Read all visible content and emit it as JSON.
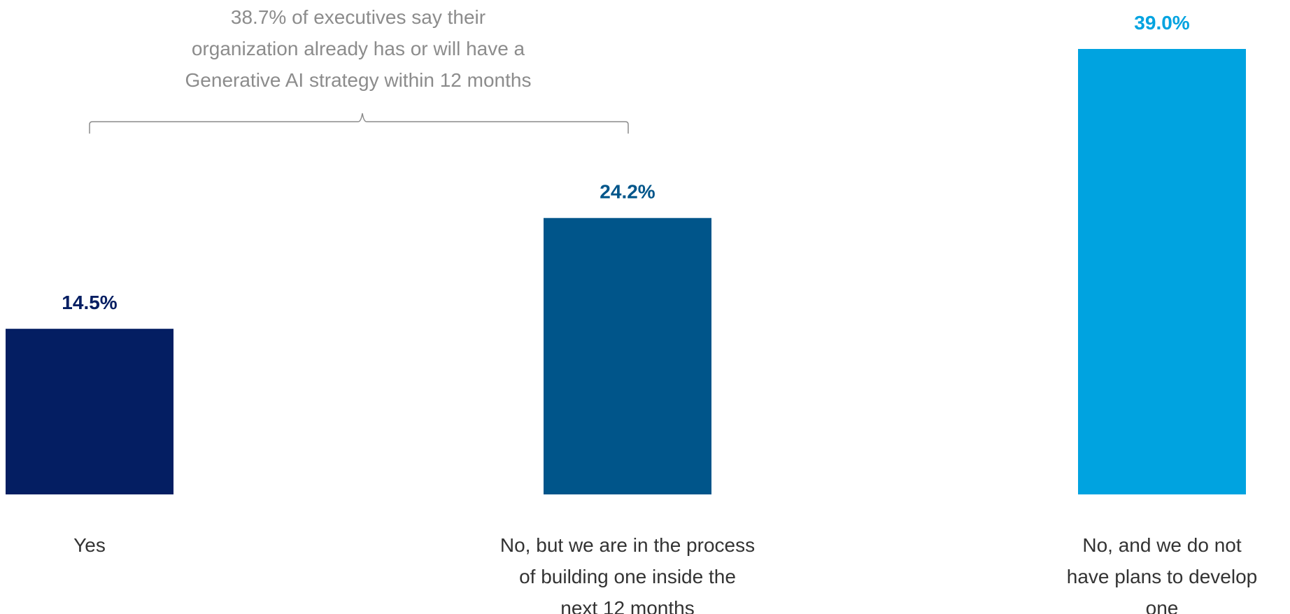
{
  "chart_data": {
    "type": "bar",
    "categories": [
      [
        "Yes"
      ],
      [
        "No, but we are in the process",
        "of building one inside the",
        "next 12 months"
      ],
      [
        "No, and we do not",
        "have plans to develop",
        "one"
      ]
    ],
    "values": [
      14.5,
      24.2,
      39.0
    ],
    "value_labels": [
      "14.5%",
      "24.2%",
      "39.0%"
    ],
    "colors": [
      "#041e62",
      "#00558a",
      "#00a3e0"
    ],
    "ylim": [
      0,
      39.0
    ],
    "grid": false,
    "annotation": {
      "lines": [
        "38.7% of executives say their",
        "organization already has or will have a",
        "Generative AI strategy within 12 months"
      ],
      "spans_categories": [
        0,
        1
      ]
    }
  }
}
